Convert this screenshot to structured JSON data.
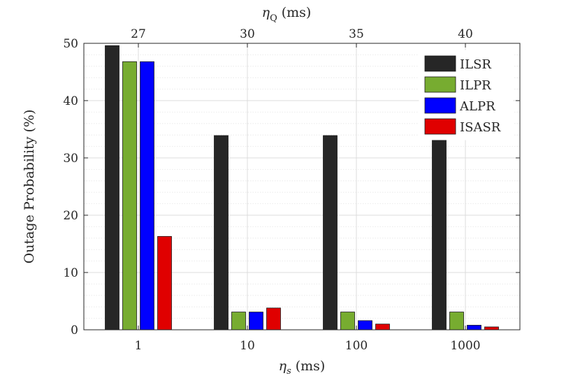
{
  "chart_data": {
    "type": "bar",
    "categories": [
      "1",
      "10",
      "100",
      "1000"
    ],
    "top_categories": [
      "27",
      "30",
      "35",
      "40"
    ],
    "series": [
      {
        "name": "ILSR",
        "values": [
          49.6,
          33.9,
          33.9,
          33.9
        ],
        "color": "#262626"
      },
      {
        "name": "ILPR",
        "values": [
          46.8,
          3.1,
          3.1,
          3.1
        ],
        "color": "#77ac30"
      },
      {
        "name": "ALPR",
        "values": [
          46.8,
          3.1,
          1.6,
          0.8
        ],
        "color": "#0000ff"
      },
      {
        "name": "ISASR",
        "values": [
          16.3,
          3.8,
          1.0,
          0.5
        ],
        "color": "#e00000"
      }
    ],
    "xlabel_symbol": "η",
    "xlabel_subscript": "s",
    "xlabel_unit": "(ms)",
    "top_xlabel_symbol": "η",
    "top_xlabel_subscript": "Q",
    "top_xlabel_unit": "(ms)",
    "ylabel": "Outage Probability (%)",
    "ylim": [
      0,
      50
    ],
    "yticks": [
      "0",
      "10",
      "20",
      "30",
      "40",
      "50"
    ],
    "grid": true,
    "minor_grid": true,
    "legend_position": "top-right"
  }
}
